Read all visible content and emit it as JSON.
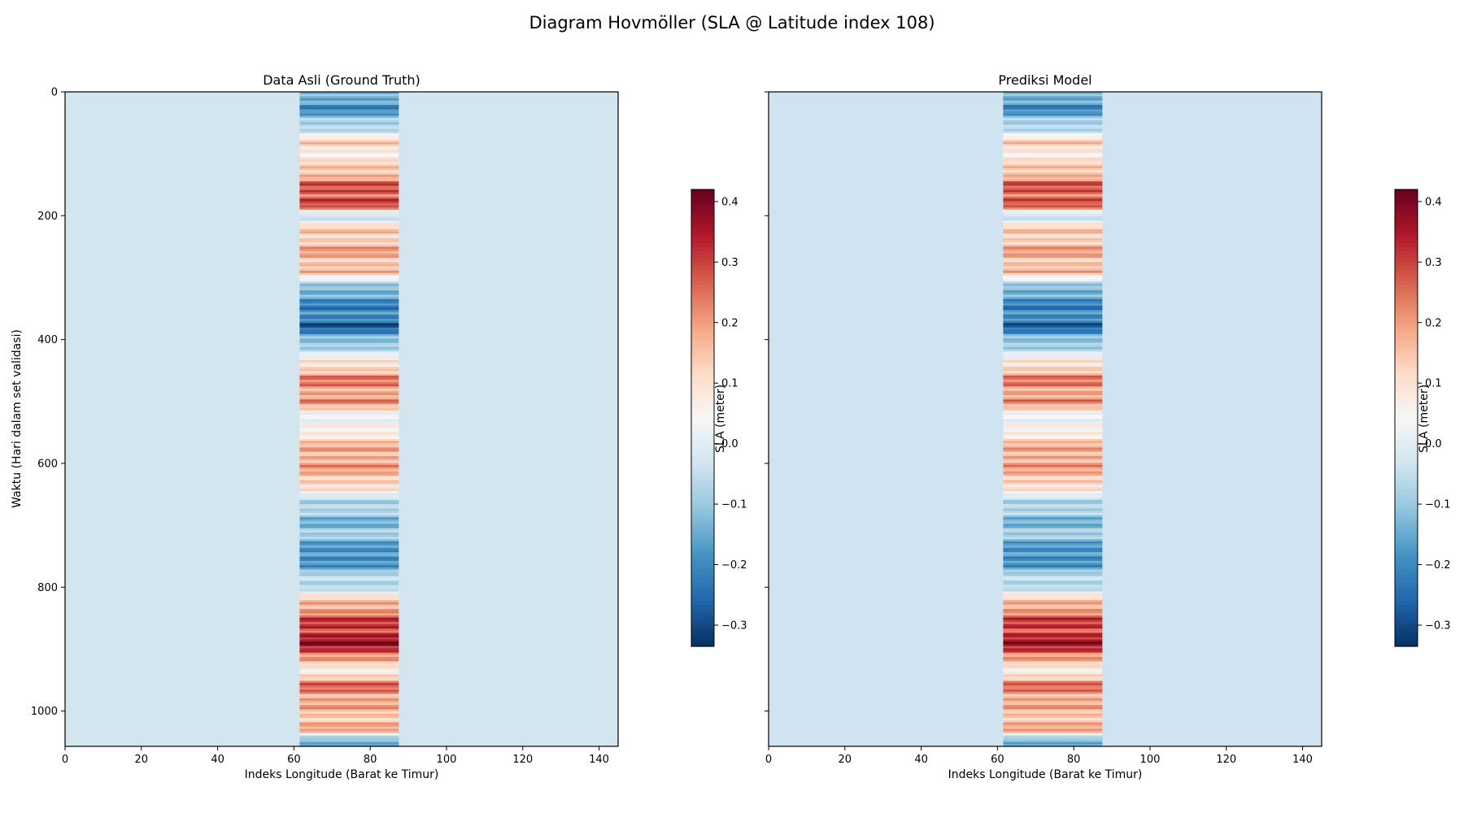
{
  "figure": {
    "title": "Diagram Hovmöller (SLA @ Latitude index 108)"
  },
  "chart_data": [
    {
      "type": "heatmap",
      "title": "Data Asli (Ground Truth)",
      "xlabel": "Indeks Longitude (Barat ke Timur)",
      "ylabel": "Waktu (Hari dalam set validasi)",
      "xlim": [
        0,
        145
      ],
      "ylim": [
        1057,
        0
      ],
      "x_ticks": [
        0,
        20,
        40,
        60,
        80,
        100,
        120,
        140
      ],
      "y_ticks": [
        0,
        200,
        400,
        600,
        800,
        1000
      ],
      "active_band_x": [
        61.5,
        87.5
      ],
      "background_value": -0.03,
      "band_profile": [
        {
          "t": 0,
          "v": -0.15
        },
        {
          "t": 30,
          "v": -0.18
        },
        {
          "t": 60,
          "v": -0.05
        },
        {
          "t": 80,
          "v": 0.12
        },
        {
          "t": 110,
          "v": 0.08
        },
        {
          "t": 150,
          "v": 0.25
        },
        {
          "t": 180,
          "v": 0.32
        },
        {
          "t": 200,
          "v": -0.05
        },
        {
          "t": 220,
          "v": 0.12
        },
        {
          "t": 260,
          "v": 0.18
        },
        {
          "t": 290,
          "v": 0.15
        },
        {
          "t": 320,
          "v": -0.15
        },
        {
          "t": 350,
          "v": -0.2
        },
        {
          "t": 380,
          "v": -0.25
        },
        {
          "t": 420,
          "v": -0.02
        },
        {
          "t": 460,
          "v": 0.22
        },
        {
          "t": 500,
          "v": 0.2
        },
        {
          "t": 530,
          "v": 0.0
        },
        {
          "t": 560,
          "v": 0.12
        },
        {
          "t": 590,
          "v": 0.2
        },
        {
          "t": 630,
          "v": 0.15
        },
        {
          "t": 660,
          "v": -0.05
        },
        {
          "t": 690,
          "v": -0.12
        },
        {
          "t": 720,
          "v": -0.1
        },
        {
          "t": 750,
          "v": -0.22
        },
        {
          "t": 780,
          "v": -0.08
        },
        {
          "t": 800,
          "v": -0.05
        },
        {
          "t": 830,
          "v": 0.2
        },
        {
          "t": 870,
          "v": 0.33
        },
        {
          "t": 900,
          "v": 0.35
        },
        {
          "t": 930,
          "v": 0.05
        },
        {
          "t": 960,
          "v": 0.25
        },
        {
          "t": 1000,
          "v": 0.15
        },
        {
          "t": 1030,
          "v": 0.18
        },
        {
          "t": 1045,
          "v": -0.1
        },
        {
          "t": 1057,
          "v": -0.12
        }
      ],
      "colorbar": {
        "label": "SLA (meter)",
        "range": [
          -0.335,
          0.42
        ],
        "ticks": [
          -0.3,
          -0.2,
          -0.1,
          0.0,
          0.1,
          0.2,
          0.3,
          0.4
        ],
        "colormap": "RdBu_r"
      }
    },
    {
      "type": "heatmap",
      "title": "Prediksi Model",
      "xlabel": "Indeks Longitude (Barat ke Timur)",
      "ylabel": "",
      "xlim": [
        0,
        145
      ],
      "ylim": [
        1057,
        0
      ],
      "x_ticks": [
        0,
        20,
        40,
        60,
        80,
        100,
        120,
        140
      ],
      "y_ticks": [
        0,
        200,
        400,
        600,
        800,
        1000
      ],
      "active_band_x": [
        61.5,
        87.5
      ],
      "background_value": -0.035,
      "band_profile": [
        {
          "t": 0,
          "v": -0.15
        },
        {
          "t": 30,
          "v": -0.18
        },
        {
          "t": 60,
          "v": -0.05
        },
        {
          "t": 80,
          "v": 0.12
        },
        {
          "t": 110,
          "v": 0.08
        },
        {
          "t": 150,
          "v": 0.25
        },
        {
          "t": 180,
          "v": 0.3
        },
        {
          "t": 200,
          "v": -0.05
        },
        {
          "t": 220,
          "v": 0.12
        },
        {
          "t": 260,
          "v": 0.18
        },
        {
          "t": 290,
          "v": 0.15
        },
        {
          "t": 320,
          "v": -0.15
        },
        {
          "t": 350,
          "v": -0.2
        },
        {
          "t": 380,
          "v": -0.24
        },
        {
          "t": 420,
          "v": -0.02
        },
        {
          "t": 460,
          "v": 0.22
        },
        {
          "t": 500,
          "v": 0.2
        },
        {
          "t": 530,
          "v": 0.0
        },
        {
          "t": 560,
          "v": 0.12
        },
        {
          "t": 590,
          "v": 0.2
        },
        {
          "t": 630,
          "v": 0.15
        },
        {
          "t": 660,
          "v": -0.05
        },
        {
          "t": 690,
          "v": -0.12
        },
        {
          "t": 720,
          "v": -0.1
        },
        {
          "t": 750,
          "v": -0.22
        },
        {
          "t": 780,
          "v": -0.08
        },
        {
          "t": 800,
          "v": -0.05
        },
        {
          "t": 830,
          "v": 0.2
        },
        {
          "t": 870,
          "v": 0.32
        },
        {
          "t": 900,
          "v": 0.34
        },
        {
          "t": 930,
          "v": 0.05
        },
        {
          "t": 960,
          "v": 0.24
        },
        {
          "t": 1000,
          "v": 0.15
        },
        {
          "t": 1030,
          "v": 0.18
        },
        {
          "t": 1045,
          "v": -0.1
        },
        {
          "t": 1057,
          "v": -0.12
        }
      ],
      "colorbar": {
        "label": "SLA (meter)",
        "range": [
          -0.335,
          0.42
        ],
        "ticks": [
          -0.3,
          -0.2,
          -0.1,
          0.0,
          0.1,
          0.2,
          0.3,
          0.4
        ],
        "colormap": "RdBu_r"
      }
    }
  ]
}
